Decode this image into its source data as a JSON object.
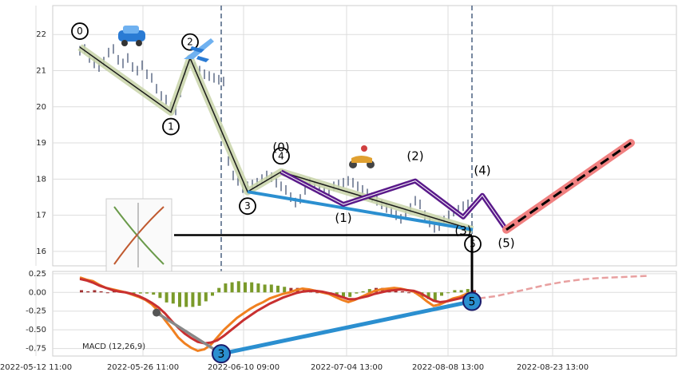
{
  "chart_data": {
    "type": "line",
    "panels": [
      "price",
      "macd"
    ],
    "x_tick_labels": [
      "2022-05-12 11:00",
      "2022-05-26 11:00",
      "2022-06-10 09:00",
      "2022-07-04 13:00",
      "2022-08-08 13:00",
      "2022-08-23 13:00"
    ],
    "price_axis": {
      "ylim": [
        15.6,
        22.8
      ],
      "ticks": [
        16,
        17,
        18,
        19,
        20,
        21,
        22
      ]
    },
    "macd_axis": {
      "ylim": [
        -0.85,
        0.28
      ],
      "ticks": [
        0.25,
        0.0,
        -0.25,
        -0.5,
        -0.75
      ],
      "tick_labels": [
        "0.25",
        "0.00",
        "-0.25",
        "-0.50",
        "-0.75"
      ]
    },
    "grid": true,
    "vertical_markers_x": [
      277,
      591
    ],
    "support_line": {
      "y": 16.45
    },
    "price_series": [
      [
        0,
        21.55
      ],
      [
        1,
        21.6
      ],
      [
        2,
        21.35
      ],
      [
        3,
        21.2
      ],
      [
        4,
        21.1
      ],
      [
        5,
        21.25
      ],
      [
        6,
        21.5
      ],
      [
        7,
        21.6
      ],
      [
        8,
        21.3
      ],
      [
        9,
        21.2
      ],
      [
        10,
        21.35
      ],
      [
        11,
        21.1
      ],
      [
        12,
        21.0
      ],
      [
        13,
        21.15
      ],
      [
        14,
        20.9
      ],
      [
        15,
        20.8
      ],
      [
        16,
        20.5
      ],
      [
        17,
        20.3
      ],
      [
        18,
        20.2
      ],
      [
        19,
        20.0
      ],
      [
        20,
        19.9
      ],
      [
        21,
        20.4
      ],
      [
        22,
        21.0
      ],
      [
        23,
        21.3
      ],
      [
        24,
        21.1
      ],
      [
        25,
        21.0
      ],
      [
        26,
        20.9
      ],
      [
        27,
        20.85
      ],
      [
        28,
        20.8
      ],
      [
        29,
        20.75
      ],
      [
        30,
        20.7
      ],
      [
        31,
        18.5
      ],
      [
        32,
        18.1
      ],
      [
        33,
        17.95
      ],
      [
        34,
        17.75
      ],
      [
        35,
        17.8
      ],
      [
        36,
        17.85
      ],
      [
        37,
        17.9
      ],
      [
        38,
        18.0
      ],
      [
        39,
        18.1
      ],
      [
        40,
        18.05
      ],
      [
        41,
        17.9
      ],
      [
        42,
        17.8
      ],
      [
        43,
        17.7
      ],
      [
        44,
        17.5
      ],
      [
        45,
        17.35
      ],
      [
        46,
        17.45
      ],
      [
        47,
        17.7
      ],
      [
        48,
        17.9
      ],
      [
        49,
        17.8
      ],
      [
        50,
        17.7
      ],
      [
        51,
        17.65
      ],
      [
        52,
        17.6
      ],
      [
        53,
        17.8
      ],
      [
        54,
        17.85
      ],
      [
        55,
        17.9
      ],
      [
        56,
        17.95
      ],
      [
        57,
        17.9
      ],
      [
        58,
        17.8
      ],
      [
        59,
        17.7
      ],
      [
        60,
        17.6
      ],
      [
        61,
        17.5
      ],
      [
        62,
        17.4
      ],
      [
        63,
        17.3
      ],
      [
        64,
        17.2
      ],
      [
        65,
        17.1
      ],
      [
        66,
        17.0
      ],
      [
        67,
        16.9
      ],
      [
        68,
        17.0
      ],
      [
        69,
        17.2
      ],
      [
        70,
        17.4
      ],
      [
        71,
        17.3
      ],
      [
        72,
        17.0
      ],
      [
        73,
        16.8
      ],
      [
        74,
        16.65
      ],
      [
        75,
        16.7
      ],
      [
        76,
        16.85
      ],
      [
        77,
        17.0
      ],
      [
        78,
        17.1
      ],
      [
        79,
        17.15
      ],
      [
        80,
        17.25
      ],
      [
        81,
        17.3
      ]
    ],
    "waves": {
      "impulse": {
        "labels": [
          "0",
          "1",
          "2",
          "3",
          "4",
          "5"
        ],
        "points": [
          [
            0,
            21.65
          ],
          [
            19,
            19.85
          ],
          [
            23,
            21.35
          ],
          [
            35,
            17.65
          ],
          [
            42,
            18.2
          ],
          [
            82,
            16.6
          ]
        ]
      },
      "sub_waves": {
        "labels": [
          "(0)",
          "(1)",
          "(2)",
          "(3)",
          "(4)",
          "(5)"
        ],
        "points": [
          [
            42,
            18.2
          ],
          [
            55,
            17.3
          ],
          [
            70,
            17.95
          ],
          [
            80,
            16.95
          ],
          [
            84,
            17.55
          ],
          [
            89,
            16.6
          ]
        ]
      },
      "forecast": {
        "points": [
          [
            89,
            16.6
          ],
          [
            115,
            19.0
          ]
        ]
      }
    },
    "macd_series": {
      "name": "MACD (12,26,9)",
      "macd": [
        0.2,
        0.17,
        0.15,
        0.1,
        0.06,
        0.04,
        0.02,
        0.0,
        -0.03,
        -0.06,
        -0.1,
        -0.16,
        -0.25,
        -0.37,
        -0.48,
        -0.6,
        -0.68,
        -0.74,
        -0.78,
        -0.76,
        -0.7,
        -0.6,
        -0.5,
        -0.42,
        -0.34,
        -0.28,
        -0.22,
        -0.17,
        -0.13,
        -0.08,
        -0.05,
        -0.02,
        0.0,
        0.03,
        0.05,
        0.04,
        0.02,
        0.0,
        -0.02,
        -0.06,
        -0.1,
        -0.13,
        -0.1,
        -0.06,
        -0.02,
        0.02,
        0.04,
        0.05,
        0.06,
        0.05,
        0.03,
        0.01,
        -0.05,
        -0.12,
        -0.18,
        -0.16,
        -0.12,
        -0.08,
        -0.06,
        -0.02,
        0.0
      ],
      "signal": [
        0.18,
        0.16,
        0.13,
        0.09,
        0.06,
        0.03,
        0.01,
        0.0,
        -0.02,
        -0.05,
        -0.09,
        -0.14,
        -0.2,
        -0.28,
        -0.38,
        -0.47,
        -0.55,
        -0.61,
        -0.66,
        -0.68,
        -0.67,
        -0.64,
        -0.58,
        -0.51,
        -0.44,
        -0.37,
        -0.31,
        -0.25,
        -0.2,
        -0.15,
        -0.11,
        -0.07,
        -0.04,
        -0.01,
        0.01,
        0.02,
        0.02,
        0.01,
        -0.01,
        -0.03,
        -0.06,
        -0.09,
        -0.09,
        -0.07,
        -0.05,
        -0.02,
        0.0,
        0.02,
        0.03,
        0.04,
        0.03,
        0.02,
        -0.01,
        -0.06,
        -0.11,
        -0.13,
        -0.12,
        -0.1,
        -0.08,
        -0.05,
        -0.02
      ],
      "forecast": [
        -0.08,
        -0.05,
        0.0,
        0.05,
        0.1,
        0.14,
        0.17,
        0.19,
        0.2,
        0.21,
        0.22
      ],
      "points": {
        "labels": [
          "3",
          "5"
        ],
        "values": [
          [
            18,
            -0.82
          ],
          [
            57,
            -0.12
          ]
        ]
      },
      "helper_point": [
        -0.27
      ]
    }
  }
}
